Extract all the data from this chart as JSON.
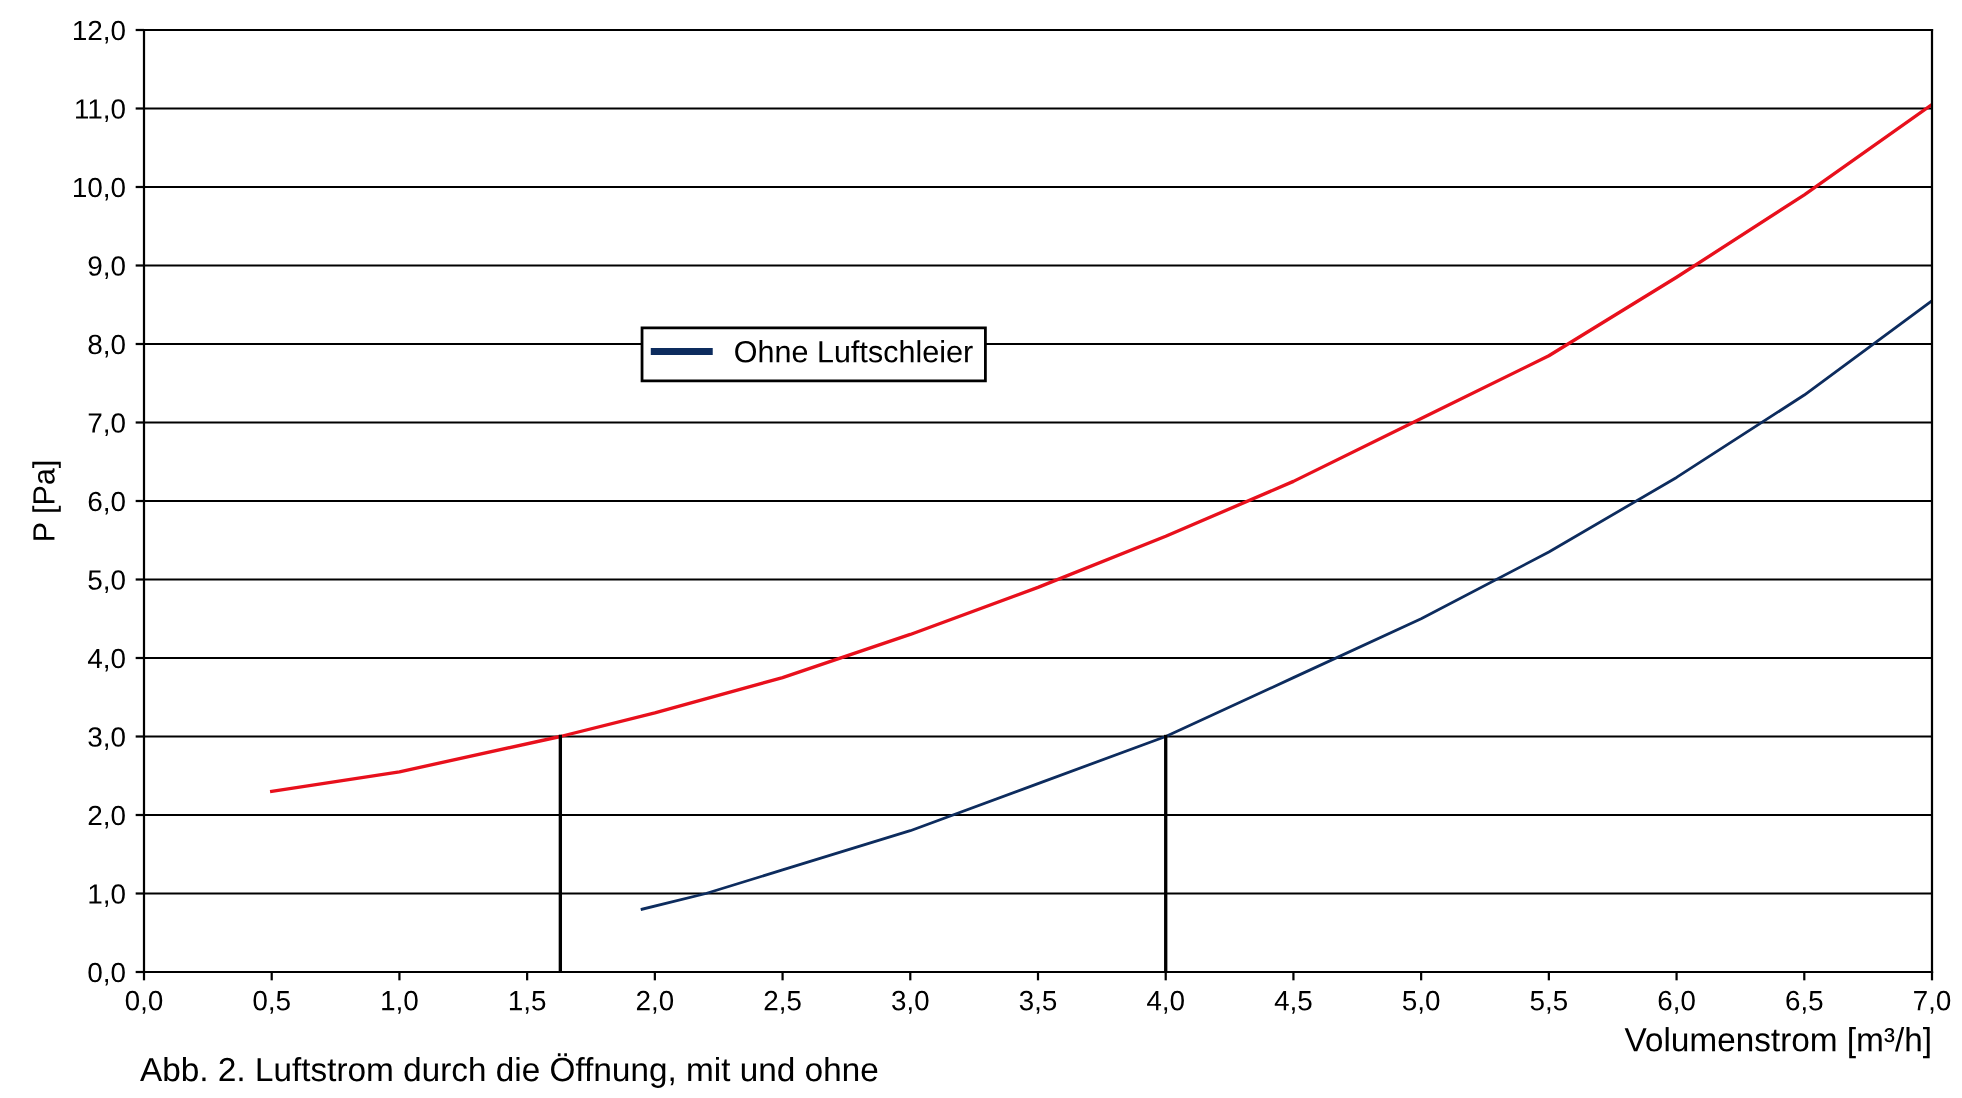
{
  "chart_data": {
    "type": "line",
    "xlabel": "Volumenstrom [m³/h]",
    "ylabel": "P [Pa]",
    "annotations": [
      "Abb. 2. Luftstrom durch die Öffnung, mit und ohne"
    ],
    "xlim": [
      0,
      7
    ],
    "ylim": [
      0,
      12
    ],
    "xticks": [
      {
        "value": 0,
        "label": "0,0"
      },
      {
        "value": 0.5,
        "label": "0,5"
      },
      {
        "value": 1,
        "label": "1,0"
      },
      {
        "value": 1.5,
        "label": "1,5"
      },
      {
        "value": 2,
        "label": "2,0"
      },
      {
        "value": 2.5,
        "label": "2,5"
      },
      {
        "value": 3,
        "label": "3,0"
      },
      {
        "value": 3.5,
        "label": "3,5"
      },
      {
        "value": 4,
        "label": "4,0"
      },
      {
        "value": 4.5,
        "label": "4,5"
      },
      {
        "value": 5,
        "label": "5,0"
      },
      {
        "value": 5.5,
        "label": "5,5"
      },
      {
        "value": 6,
        "label": "6,0"
      },
      {
        "value": 6.5,
        "label": "6,5"
      },
      {
        "value": 7,
        "label": "7,0"
      }
    ],
    "yticks": [
      {
        "value": 0,
        "label": "0,0"
      },
      {
        "value": 1,
        "label": "1,0"
      },
      {
        "value": 2,
        "label": "2,0"
      },
      {
        "value": 3,
        "label": "3,0"
      },
      {
        "value": 4,
        "label": "4,0"
      },
      {
        "value": 5,
        "label": "5,0"
      },
      {
        "value": 6,
        "label": "6,0"
      },
      {
        "value": 7,
        "label": "7,0"
      },
      {
        "value": 8,
        "label": "8,0"
      },
      {
        "value": 9,
        "label": "9,0"
      },
      {
        "value": 10,
        "label": "10,0"
      },
      {
        "value": 11,
        "label": "11,0"
      },
      {
        "value": 12,
        "label": "12,0"
      }
    ],
    "grid": "y",
    "legend": "top left",
    "marker": "none",
    "line_style": "solid",
    "series": [
      {
        "name": "Ohne Luftschleier",
        "color": "#0d2c5e",
        "x": [
          1.95,
          2.2,
          2.5,
          3.0,
          3.5,
          4.0,
          4.5,
          5.0,
          5.5,
          6.0,
          6.5,
          7.0
        ],
        "values": [
          0.8,
          1.0,
          1.3,
          1.8,
          2.4,
          3.0,
          3.75,
          4.5,
          5.35,
          6.3,
          7.35,
          8.55
        ]
      },
      {
        "color": "#e8101c",
        "x": [
          0.5,
          1.0,
          1.63,
          2.0,
          2.5,
          3.0,
          3.5,
          4.0,
          4.5,
          5.0,
          5.5,
          6.0,
          6.5,
          7.0
        ],
        "values": [
          2.3,
          2.55,
          3.0,
          3.3,
          3.75,
          4.3,
          4.9,
          5.55,
          6.25,
          7.05,
          7.85,
          8.85,
          9.9,
          11.05
        ]
      },
      {
        "color": "#000000",
        "x": [
          1.63,
          1.63
        ],
        "values": [
          0,
          3.0
        ]
      },
      {
        "color": "#000000",
        "x": [
          4.0,
          4.0
        ],
        "values": [
          0,
          3.0
        ]
      }
    ]
  }
}
